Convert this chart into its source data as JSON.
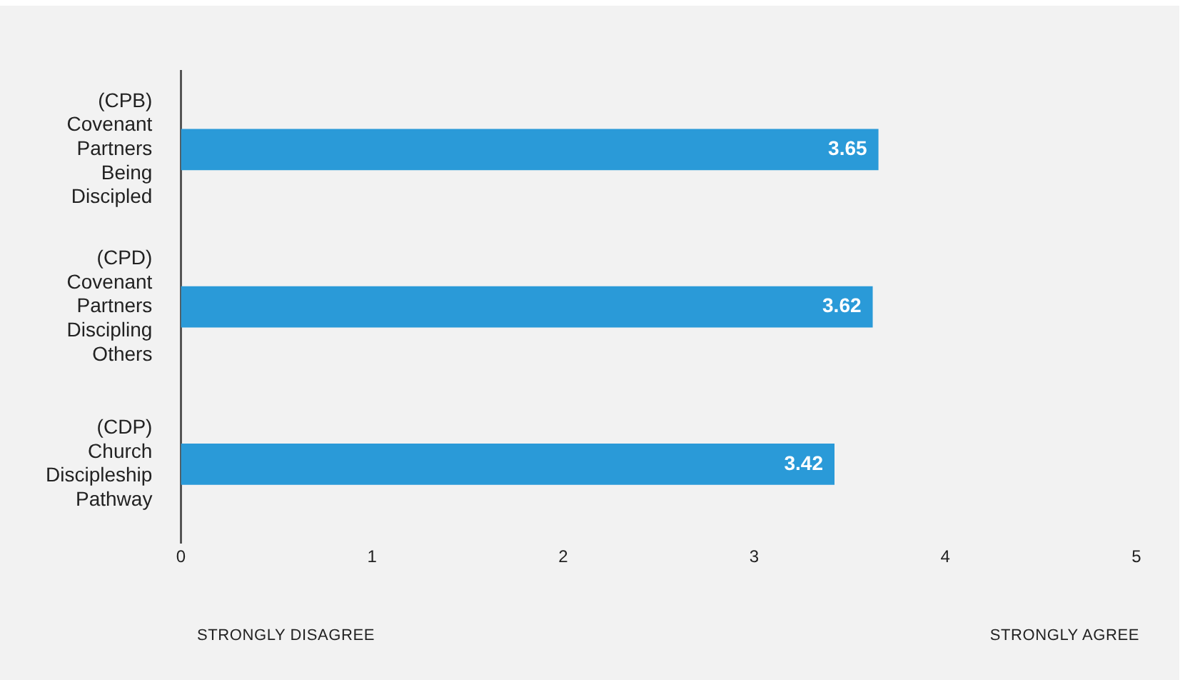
{
  "chart_data": {
    "type": "bar",
    "orientation": "horizontal",
    "categories": [
      "(CPB) Covenant Partners Being Discipled",
      "(CPD) Covenant Partners Discipling Others",
      "(CDP) Church Discipleship Pathway"
    ],
    "values": [
      3.65,
      3.62,
      3.42
    ],
    "color": "#2a9ad8",
    "data_labels": true,
    "xlim": [
      0,
      5
    ],
    "xticks": [
      0,
      1,
      2,
      3,
      4,
      5
    ],
    "grid": false,
    "legend": false,
    "annotations": [
      "STRONGLY DISAGREE",
      "STRONGLY AGREE"
    ]
  }
}
